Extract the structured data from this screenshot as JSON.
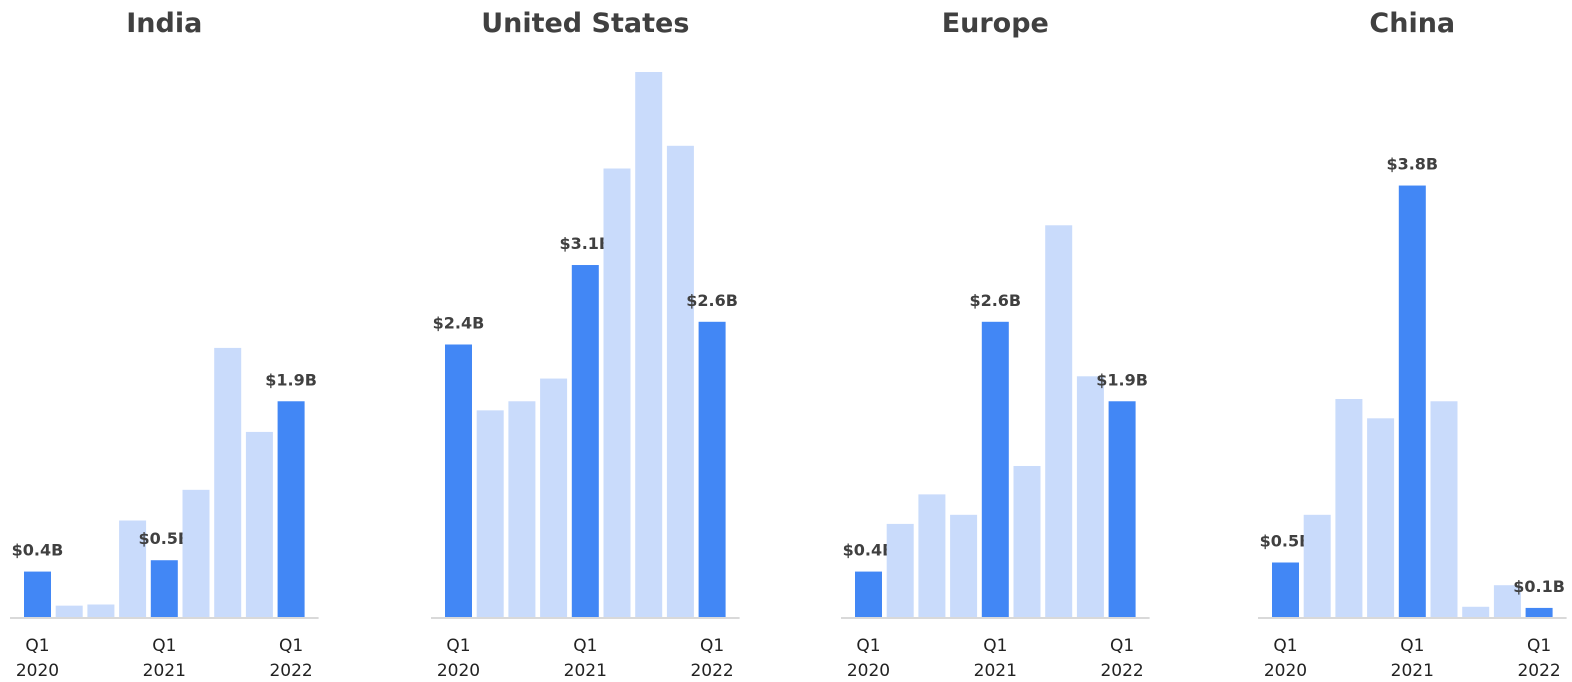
{
  "chart_data": [
    {
      "type": "bar",
      "title": "India",
      "unit": "$B",
      "categories": [
        "Q1 2020",
        "Q2 2020",
        "Q3 2020",
        "Q4 2020",
        "Q1 2021",
        "Q2 2021",
        "Q3 2021",
        "Q4 2021",
        "Q1 2022"
      ],
      "values": [
        0.4,
        0.1,
        0.11,
        0.85,
        0.5,
        1.12,
        2.37,
        1.63,
        1.9
      ],
      "highlight": [
        true,
        false,
        false,
        false,
        true,
        false,
        false,
        false,
        true
      ],
      "value_labels": [
        "$0.4B",
        "",
        "",
        "",
        "$0.5B",
        "",
        "",
        "",
        "$1.9B"
      ],
      "tick_labels": [
        {
          "index": 0,
          "line1": "Q1",
          "line2": "2020"
        },
        {
          "index": 4,
          "line1": "Q1",
          "line2": "2021"
        },
        {
          "index": 8,
          "line1": "Q1",
          "line2": "2022"
        }
      ],
      "ylim": [
        0,
        4.8
      ]
    },
    {
      "type": "bar",
      "title": "United States",
      "unit": "$B",
      "categories": [
        "Q1 2020",
        "Q2 2020",
        "Q3 2020",
        "Q4 2020",
        "Q1 2021",
        "Q2 2021",
        "Q3 2021",
        "Q4 2021",
        "Q1 2022"
      ],
      "values": [
        2.4,
        1.82,
        1.9,
        2.1,
        3.1,
        3.95,
        4.8,
        4.15,
        2.6
      ],
      "highlight": [
        true,
        false,
        false,
        false,
        true,
        false,
        false,
        false,
        true
      ],
      "value_labels": [
        "$2.4B",
        "",
        "",
        "",
        "$3.1B",
        "",
        "",
        "",
        "$2.6B"
      ],
      "tick_labels": [
        {
          "index": 0,
          "line1": "Q1",
          "line2": "2020"
        },
        {
          "index": 4,
          "line1": "Q1",
          "line2": "2021"
        },
        {
          "index": 8,
          "line1": "Q1",
          "line2": "2022"
        }
      ],
      "ylim": [
        0,
        4.8
      ]
    },
    {
      "type": "bar",
      "title": "Europe",
      "unit": "$B",
      "categories": [
        "Q1 2020",
        "Q2 2020",
        "Q3 2020",
        "Q4 2020",
        "Q1 2021",
        "Q2 2021",
        "Q3 2021",
        "Q4 2021",
        "Q1 2022"
      ],
      "values": [
        0.4,
        0.82,
        1.08,
        0.9,
        2.6,
        1.33,
        3.45,
        2.12,
        1.9
      ],
      "highlight": [
        true,
        false,
        false,
        false,
        true,
        false,
        false,
        false,
        true
      ],
      "value_labels": [
        "$0.4B",
        "",
        "",
        "",
        "$2.6B",
        "",
        "",
        "",
        "$1.9B"
      ],
      "tick_labels": [
        {
          "index": 0,
          "line1": "Q1",
          "line2": "2020"
        },
        {
          "index": 4,
          "line1": "Q1",
          "line2": "2021"
        },
        {
          "index": 8,
          "line1": "Q1",
          "line2": "2022"
        }
      ],
      "ylim": [
        0,
        4.8
      ]
    },
    {
      "type": "bar",
      "title": "China",
      "unit": "$B",
      "categories": [
        "Q1 2020",
        "Q2 2020",
        "Q3 2020",
        "Q4 2020",
        "Q1 2021",
        "Q2 2021",
        "Q3 2021",
        "Q4 2021",
        "Q1 2022"
      ],
      "values": [
        0.48,
        0.9,
        1.92,
        1.75,
        3.8,
        1.9,
        0.09,
        0.28,
        0.08
      ],
      "highlight": [
        true,
        false,
        false,
        false,
        true,
        false,
        false,
        false,
        true
      ],
      "value_labels": [
        "$0.5B",
        "",
        "",
        "",
        "$3.8B",
        "",
        "",
        "",
        "$0.1B"
      ],
      "tick_labels": [
        {
          "index": 0,
          "line1": "Q1",
          "line2": "2020"
        },
        {
          "index": 4,
          "line1": "Q1",
          "line2": "2021"
        },
        {
          "index": 8,
          "line1": "Q1",
          "line2": "2022"
        }
      ],
      "ylim": [
        0,
        4.8
      ]
    }
  ],
  "colors": {
    "highlight_bar": "#4287f5",
    "normal_bar": "#c9dbfb",
    "baseline": "#d9d9d9",
    "title_text": "#404040",
    "label_text": "#404040"
  }
}
